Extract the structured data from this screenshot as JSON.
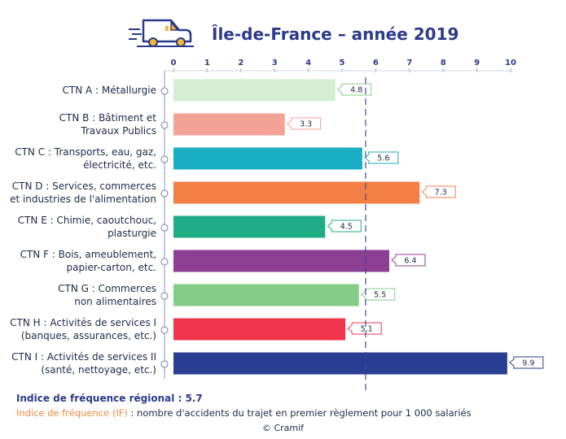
{
  "chart_data": {
    "type": "bar",
    "orientation": "horizontal",
    "title": "Île-de-France – année 2019",
    "categories": [
      [
        "CTN A : Métallurgie"
      ],
      [
        "CTN B : Bâtiment et",
        "Travaux Publics"
      ],
      [
        "CTN C : Transports, eau, gaz,",
        "électricité, etc."
      ],
      [
        "CTN D : Services, commerces",
        "et industries de l'alimentation"
      ],
      [
        "CTN E : Chimie, caoutchouc,",
        "plasturgie"
      ],
      [
        "CTN F : Bois, ameublement,",
        "papier-carton, etc."
      ],
      [
        "CTN G : Commerces",
        "non alimentaires"
      ],
      [
        "CTN H : Activités de services I",
        "(banques, assurances, etc.)"
      ],
      [
        "CTN I : Activités de services II",
        "(santé, nettoyage, etc.)"
      ]
    ],
    "values": [
      4.8,
      3.3,
      5.6,
      7.3,
      4.5,
      6.4,
      5.5,
      5.1,
      9.9
    ],
    "value_labels": [
      "4.8",
      "3.3",
      "5.6",
      "7.3",
      "4.5",
      "6.4",
      "5.5",
      "5.1",
      "9.9"
    ],
    "colors": [
      "#d4eed4",
      "#f4a196",
      "#1aaec2",
      "#f47f45",
      "#1fad87",
      "#8d3f94",
      "#85cc86",
      "#f0364f",
      "#2a3d93"
    ],
    "x_ticks": [
      0,
      1,
      2,
      3,
      4,
      5,
      6,
      7,
      8,
      9,
      10
    ],
    "xlim": [
      0,
      10
    ],
    "reference_line": {
      "value": 5.7,
      "label": "Indice de fréquence régional :",
      "value_label": "5.7"
    }
  },
  "footer": {
    "legend_term": "Indice de fréquence (IF)",
    "legend_definition": " : nombre d'accidents du trajet en premier règlement pour 1 000 salariés",
    "copyright": "© Cramif"
  },
  "colors": {
    "accent": "#2b3a8c",
    "van_outline": "#2b3a8c",
    "van_accent": "#f5b82e"
  },
  "icons": {
    "title_icon": "delivery-van-icon"
  }
}
